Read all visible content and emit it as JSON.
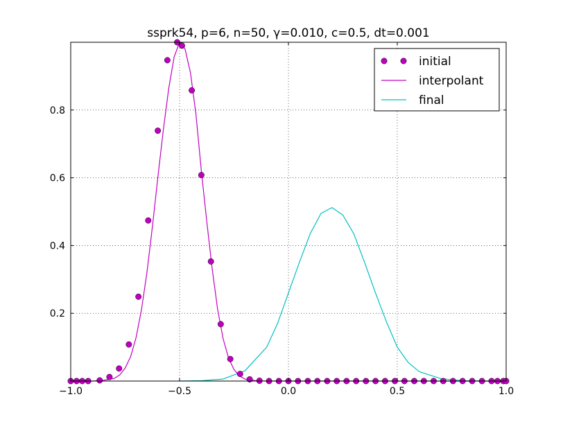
{
  "chart_data": {
    "type": "line",
    "title": "ssprk54, p=6, n=50, γ=0.010, c=0.5, dt=0.001",
    "xlabel": "",
    "ylabel": "",
    "xlim": [
      -1.0,
      1.0
    ],
    "ylim": [
      0.0,
      1.0
    ],
    "grid": true,
    "legend_position": "top-right",
    "x_ticks": [
      {
        "value": -1.0,
        "label": "−1.0"
      },
      {
        "value": -0.5,
        "label": "−0.5"
      },
      {
        "value": 0.0,
        "label": "0.0"
      },
      {
        "value": 0.5,
        "label": "0.5"
      },
      {
        "value": 1.0,
        "label": "1.0"
      }
    ],
    "y_ticks": [
      {
        "value": 0.2,
        "label": "0.2"
      },
      {
        "value": 0.4,
        "label": "0.4"
      },
      {
        "value": 0.6,
        "label": "0.6"
      },
      {
        "value": 0.8,
        "label": "0.8"
      }
    ],
    "series": [
      {
        "name": "initial",
        "style": "markers",
        "color": "#bf00bf",
        "x": [
          -1.0,
          -0.973,
          -0.947,
          -0.92,
          -0.867,
          -0.822,
          -0.778,
          -0.733,
          -0.689,
          -0.644,
          -0.6,
          -0.556,
          -0.511,
          -0.489,
          -0.444,
          -0.4,
          -0.356,
          -0.311,
          -0.267,
          -0.222,
          -0.178,
          -0.133,
          -0.089,
          -0.044,
          0.0,
          0.044,
          0.089,
          0.133,
          0.178,
          0.222,
          0.267,
          0.311,
          0.356,
          0.4,
          0.444,
          0.489,
          0.533,
          0.578,
          0.622,
          0.667,
          0.711,
          0.756,
          0.8,
          0.844,
          0.889,
          0.933,
          0.96,
          0.987,
          1.0
        ],
        "y": [
          0.0,
          0.0,
          0.0,
          0.0,
          0.002,
          0.012,
          0.037,
          0.108,
          0.249,
          0.474,
          0.739,
          0.947,
          1.0,
          0.99,
          0.858,
          0.608,
          0.353,
          0.168,
          0.065,
          0.021,
          0.005,
          0.001,
          0.0,
          0.0,
          0.0,
          0.0,
          0.0,
          0.0,
          0.0,
          0.0,
          0.0,
          0.0,
          0.0,
          0.0,
          0.0,
          0.0,
          0.0,
          0.0,
          0.0,
          0.0,
          0.0,
          0.0,
          0.0,
          0.0,
          0.0,
          0.0,
          0.0,
          0.0,
          0.0
        ]
      },
      {
        "name": "interpolant",
        "style": "line",
        "color": "#bf00bf",
        "x": [
          -1.0,
          -0.95,
          -0.9,
          -0.85,
          -0.8,
          -0.775,
          -0.75,
          -0.725,
          -0.7,
          -0.675,
          -0.65,
          -0.625,
          -0.6,
          -0.575,
          -0.55,
          -0.525,
          -0.5,
          -0.475,
          -0.45,
          -0.425,
          -0.4,
          -0.375,
          -0.35,
          -0.325,
          -0.3,
          -0.275,
          -0.25,
          -0.225,
          -0.2,
          -0.15,
          -0.1,
          -0.05,
          0.0,
          0.1,
          0.2,
          0.3,
          0.4,
          0.5,
          0.6,
          0.7,
          0.8,
          0.9,
          1.0
        ],
        "y": [
          0.0,
          0.0,
          0.0,
          0.002,
          0.008,
          0.018,
          0.038,
          0.072,
          0.128,
          0.21,
          0.32,
          0.455,
          0.6,
          0.74,
          0.863,
          0.957,
          1.0,
          0.98,
          0.91,
          0.79,
          0.62,
          0.47,
          0.33,
          0.21,
          0.125,
          0.068,
          0.034,
          0.015,
          0.006,
          0.001,
          0.0,
          0.0,
          0.0,
          0.0,
          0.0,
          0.0,
          0.0,
          0.0,
          0.0,
          0.0,
          0.0,
          0.0,
          0.0
        ]
      },
      {
        "name": "final",
        "style": "line",
        "color": "#00bfbf",
        "x": [
          -0.5,
          -0.4,
          -0.3,
          -0.2,
          -0.1,
          -0.05,
          0.0,
          0.05,
          0.1,
          0.15,
          0.2,
          0.25,
          0.3,
          0.35,
          0.4,
          0.45,
          0.5,
          0.55,
          0.6,
          0.7,
          0.8,
          0.9,
          1.0
        ],
        "y": [
          0.0,
          0.001,
          0.006,
          0.03,
          0.1,
          0.17,
          0.26,
          0.35,
          0.435,
          0.495,
          0.512,
          0.49,
          0.435,
          0.35,
          0.26,
          0.175,
          0.1,
          0.055,
          0.028,
          0.007,
          0.001,
          0.0,
          0.0
        ]
      }
    ]
  }
}
